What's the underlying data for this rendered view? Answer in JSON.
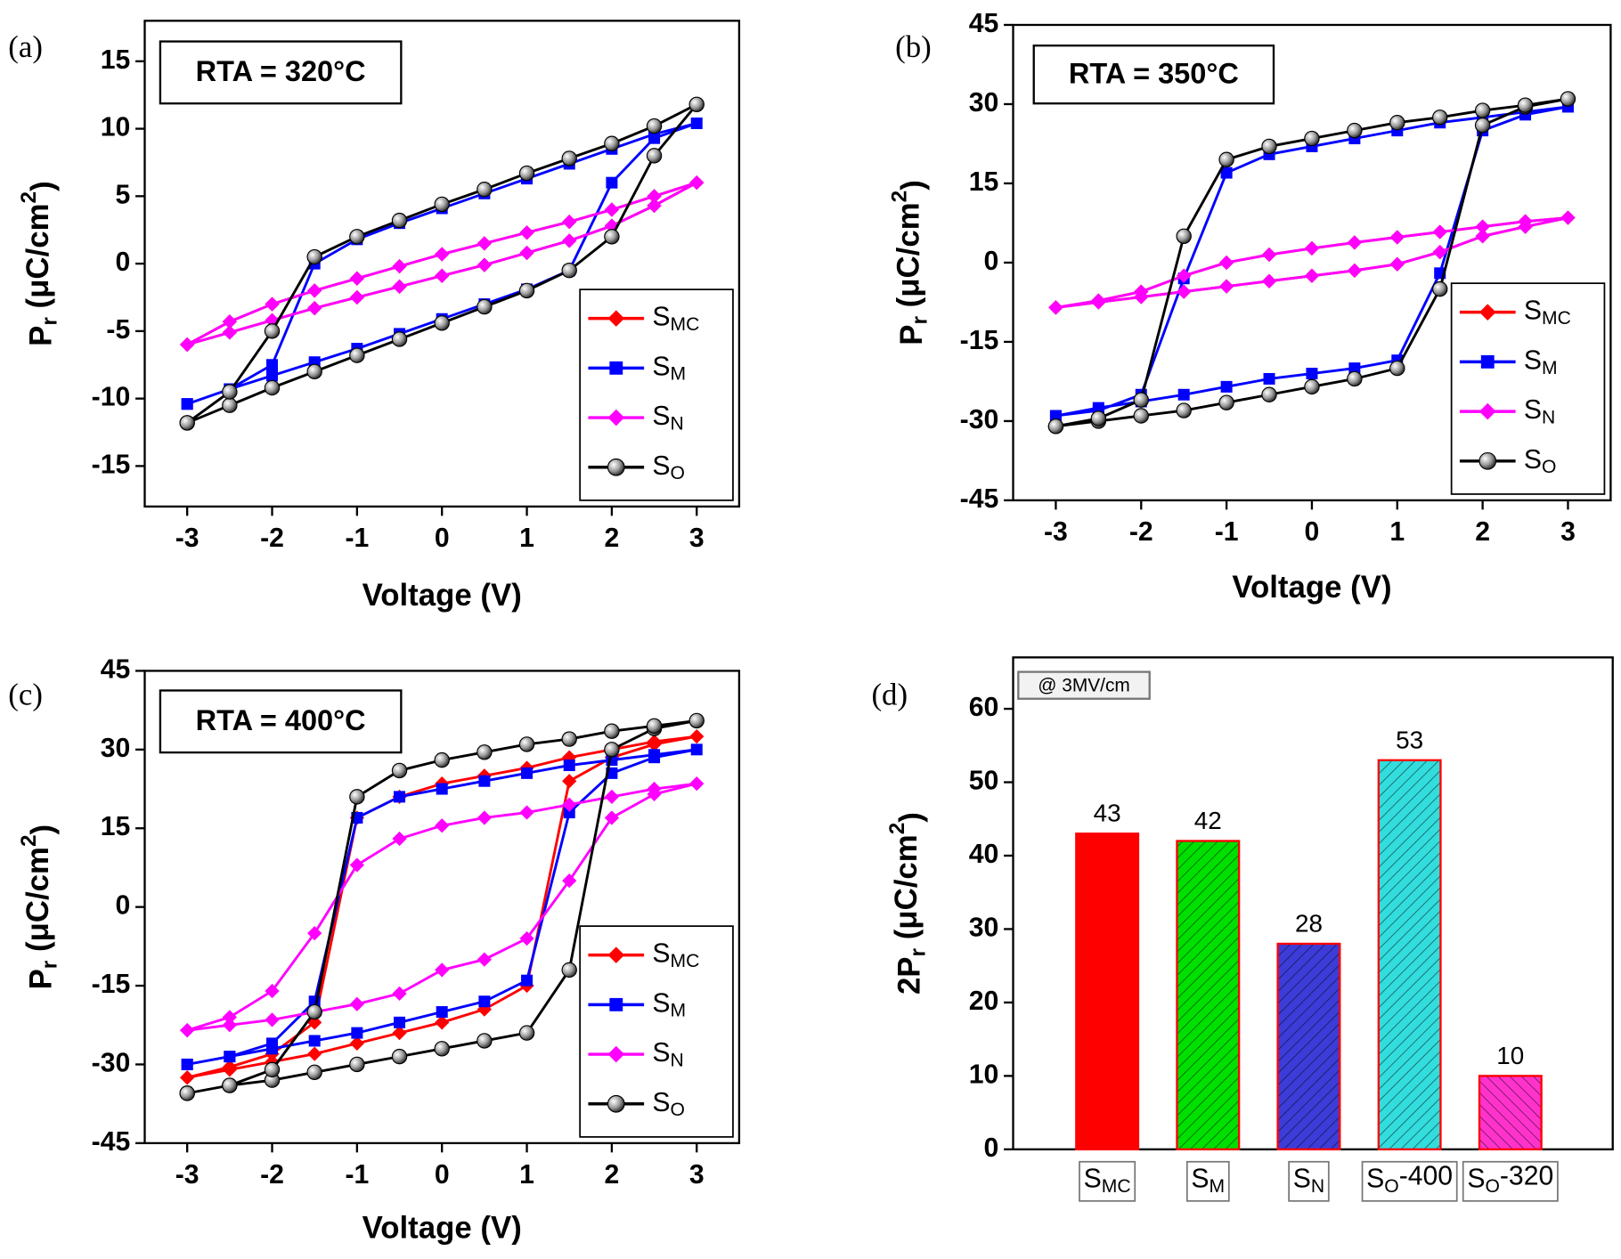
{
  "chart_data": [
    {
      "type": "line",
      "panel_label": "(a)",
      "annotation": "RTA = 320°C",
      "xlabel": "Voltage (V)",
      "ylabel": [
        "P",
        {
          "sub": "r"
        },
        " (μC/cm",
        {
          "sup": "2"
        },
        ")"
      ],
      "x": [
        -3,
        -2.5,
        -2,
        -1.5,
        -1,
        -0.5,
        0,
        0.5,
        1,
        1.5,
        2,
        2.5,
        3,
        2.5,
        2,
        1.5,
        1,
        0.5,
        0,
        -0.5,
        -1,
        -1.5,
        -2,
        -2.5,
        -3
      ],
      "xlim": [
        -3.5,
        3.5
      ],
      "xticks": [
        -3,
        -2,
        -1,
        0,
        1,
        2,
        3
      ],
      "ylim": [
        -18,
        18
      ],
      "yticks": [
        -15,
        -10,
        -5,
        0,
        5,
        10,
        15
      ],
      "legend": "lower right",
      "series": [
        {
          "name": [
            "S",
            {
              "sub": "MC"
            }
          ],
          "color": "#ff0000",
          "marker": "diamond",
          "values": [
            -6,
            -5.1,
            -4.2,
            -3.3,
            -2.5,
            -1.7,
            -0.9,
            -0.1,
            0.8,
            1.7,
            2.8,
            4.3,
            6,
            5,
            4,
            3.1,
            2.3,
            1.5,
            0.7,
            -0.2,
            -1.1,
            -2,
            -3,
            -4.3,
            -6
          ]
        },
        {
          "name": [
            "S",
            {
              "sub": "M"
            }
          ],
          "color": "#0000ff",
          "marker": "square",
          "values": [
            -10.4,
            -9.3,
            -8.3,
            -7.3,
            -6.3,
            -5.2,
            -4.1,
            -3,
            -1.9,
            -0.5,
            6,
            9.3,
            10.4,
            9.6,
            8.5,
            7.4,
            6.3,
            5.2,
            4.1,
            3,
            1.8,
            0,
            -7.5,
            -9.3,
            -10.4
          ]
        },
        {
          "name": [
            "S",
            {
              "sub": "N"
            }
          ],
          "color": "#ff00ff",
          "marker": "diamond",
          "values": [
            -6,
            -5.1,
            -4.2,
            -3.3,
            -2.5,
            -1.7,
            -0.9,
            -0.1,
            0.8,
            1.7,
            2.8,
            4.3,
            6,
            5,
            4,
            3.1,
            2.3,
            1.5,
            0.7,
            -0.2,
            -1.1,
            -2,
            -3,
            -4.3,
            -6
          ]
        },
        {
          "name": [
            "S",
            {
              "sub": "O"
            }
          ],
          "color": "#000000",
          "marker": "sphere",
          "values": [
            -11.8,
            -10.5,
            -9.2,
            -8,
            -6.8,
            -5.6,
            -4.4,
            -3.2,
            -2,
            -0.5,
            2,
            8,
            11.8,
            10.2,
            8.9,
            7.8,
            6.7,
            5.5,
            4.4,
            3.2,
            2,
            0.5,
            -5,
            -9.5,
            -11.8
          ]
        }
      ]
    },
    {
      "type": "line",
      "panel_label": "(b)",
      "annotation": "RTA = 350°C",
      "xlabel": "Voltage (V)",
      "ylabel": [
        "P",
        {
          "sub": "r"
        },
        " (μC/cm",
        {
          "sup": "2"
        },
        ")"
      ],
      "x": [
        -3,
        -2.5,
        -2,
        -1.5,
        -1,
        -0.5,
        0,
        0.5,
        1,
        1.5,
        2,
        2.5,
        3,
        2.5,
        2,
        1.5,
        1,
        0.5,
        0,
        -0.5,
        -1,
        -1.5,
        -2,
        -2.5,
        -3
      ],
      "xlim": [
        -3.5,
        3.5
      ],
      "xticks": [
        -3,
        -2,
        -1,
        0,
        1,
        2,
        3
      ],
      "ylim": [
        -45,
        45
      ],
      "yticks": [
        -45,
        -30,
        -15,
        0,
        15,
        30,
        45
      ],
      "legend": "lower right",
      "series": [
        {
          "name": [
            "S",
            {
              "sub": "MC"
            }
          ],
          "color": "#ff0000",
          "marker": "diamond",
          "values": [
            -8.5,
            -7.5,
            -6.5,
            -5.5,
            -4.5,
            -3.5,
            -2.5,
            -1.5,
            -0.3,
            2,
            5,
            6.8,
            8.5,
            7.8,
            6.8,
            5.8,
            4.8,
            3.8,
            2.7,
            1.5,
            0,
            -2.5,
            -5.5,
            -7.2,
            -8.5
          ]
        },
        {
          "name": [
            "S",
            {
              "sub": "M"
            }
          ],
          "color": "#0000ff",
          "marker": "square",
          "values": [
            -29,
            -27.5,
            -26.3,
            -25,
            -23.5,
            -22,
            -21,
            -20,
            -18.5,
            -2,
            25,
            28,
            29.5,
            28.5,
            27.5,
            26.5,
            25,
            23.5,
            22,
            20.5,
            17,
            -3,
            -25,
            -28,
            -29
          ]
        },
        {
          "name": [
            "S",
            {
              "sub": "N"
            }
          ],
          "color": "#ff00ff",
          "marker": "diamond",
          "values": [
            -8.5,
            -7.5,
            -6.5,
            -5.5,
            -4.5,
            -3.5,
            -2.5,
            -1.5,
            -0.3,
            2,
            5,
            6.8,
            8.5,
            7.8,
            6.8,
            5.8,
            4.8,
            3.8,
            2.7,
            1.5,
            0,
            -2.5,
            -5.5,
            -7.2,
            -8.5
          ]
        },
        {
          "name": [
            "S",
            {
              "sub": "O"
            }
          ],
          "color": "#000000",
          "marker": "sphere",
          "values": [
            -31,
            -30,
            -29,
            -28,
            -26.5,
            -25,
            -23.5,
            -22,
            -20,
            -5,
            26,
            29.5,
            31,
            29.8,
            28.8,
            27.5,
            26.5,
            25,
            23.5,
            22,
            19.5,
            5,
            -26,
            -29.5,
            -31
          ]
        }
      ]
    },
    {
      "type": "line",
      "panel_label": "(c)",
      "annotation": "RTA = 400°C",
      "xlabel": "Voltage (V)",
      "ylabel": [
        "P",
        {
          "sub": "r"
        },
        " (μC/cm",
        {
          "sup": "2"
        },
        ")"
      ],
      "x": [
        -3,
        -2.5,
        -2,
        -1.5,
        -1,
        -0.5,
        0,
        0.5,
        1,
        1.5,
        2,
        2.5,
        3,
        2.5,
        2,
        1.5,
        1,
        0.5,
        0,
        -0.5,
        -1,
        -1.5,
        -2,
        -2.5,
        -3
      ],
      "xlim": [
        -3.5,
        3.5
      ],
      "xticks": [
        -3,
        -2,
        -1,
        0,
        1,
        2,
        3
      ],
      "ylim": [
        -45,
        45
      ],
      "yticks": [
        -45,
        -30,
        -15,
        0,
        15,
        30,
        45
      ],
      "legend": "lower right",
      "series": [
        {
          "name": [
            "S",
            {
              "sub": "MC"
            }
          ],
          "color": "#ff0000",
          "marker": "diamond",
          "values": [
            -32.5,
            -31,
            -29.5,
            -28,
            -26,
            -24,
            -22,
            -19.5,
            -15,
            24,
            28.5,
            31,
            32.5,
            31.5,
            30,
            28.5,
            26.5,
            25,
            23.5,
            21,
            17,
            -22,
            -28,
            -30.5,
            -32.5
          ]
        },
        {
          "name": [
            "S",
            {
              "sub": "M"
            }
          ],
          "color": "#0000ff",
          "marker": "square",
          "values": [
            -30,
            -28.5,
            -27,
            -25.5,
            -24,
            -22,
            -20,
            -18,
            -14,
            18,
            25.5,
            28.5,
            30,
            29,
            28,
            27,
            25.5,
            24,
            22.5,
            21,
            17,
            -18,
            -26,
            -28.5,
            -30
          ]
        },
        {
          "name": [
            "S",
            {
              "sub": "N"
            }
          ],
          "color": "#ff00ff",
          "marker": "diamond",
          "values": [
            -23.5,
            -22.5,
            -21.5,
            -20,
            -18.5,
            -16.5,
            -12,
            -10,
            -6,
            5,
            17,
            21.5,
            23.5,
            22.5,
            21,
            19.5,
            18,
            17,
            15.5,
            13,
            8,
            -5,
            -16,
            -21,
            -23.5
          ]
        },
        {
          "name": [
            "S",
            {
              "sub": "O"
            }
          ],
          "color": "#000000",
          "marker": "sphere",
          "values": [
            -35.5,
            -34,
            -33,
            -31.5,
            -30,
            -28.5,
            -27,
            -25.5,
            -24,
            -12,
            30,
            34,
            35.5,
            34.5,
            33.5,
            32,
            31,
            29.5,
            28,
            26,
            21,
            -20,
            -31,
            -34,
            -35.5
          ]
        }
      ]
    },
    {
      "type": "bar",
      "panel_label": "(d)",
      "annotation": "@ 3MV/cm",
      "ylabel": [
        "2P",
        {
          "sub": "r"
        },
        " (μC/cm",
        {
          "sup": "2"
        },
        ")"
      ],
      "categories": [
        [
          "S",
          {
            "sub": "MC"
          }
        ],
        [
          "S",
          {
            "sub": "M"
          }
        ],
        [
          "S",
          {
            "sub": "N"
          }
        ],
        [
          "S",
          {
            "sub": "O"
          },
          "-400"
        ],
        [
          "S",
          {
            "sub": "O"
          },
          "-320"
        ]
      ],
      "values": [
        43,
        42,
        28,
        53,
        10
      ],
      "colors": [
        "#ff0000",
        "#00e000",
        "#3c3cd8",
        "#33dddd",
        "#ff33cc"
      ],
      "hatch": [
        false,
        true,
        true,
        true,
        true
      ],
      "edgecolor": "#ff0000",
      "ylim": [
        0,
        67
      ],
      "yticks": [
        0,
        10,
        20,
        30,
        40,
        50,
        60
      ]
    }
  ]
}
